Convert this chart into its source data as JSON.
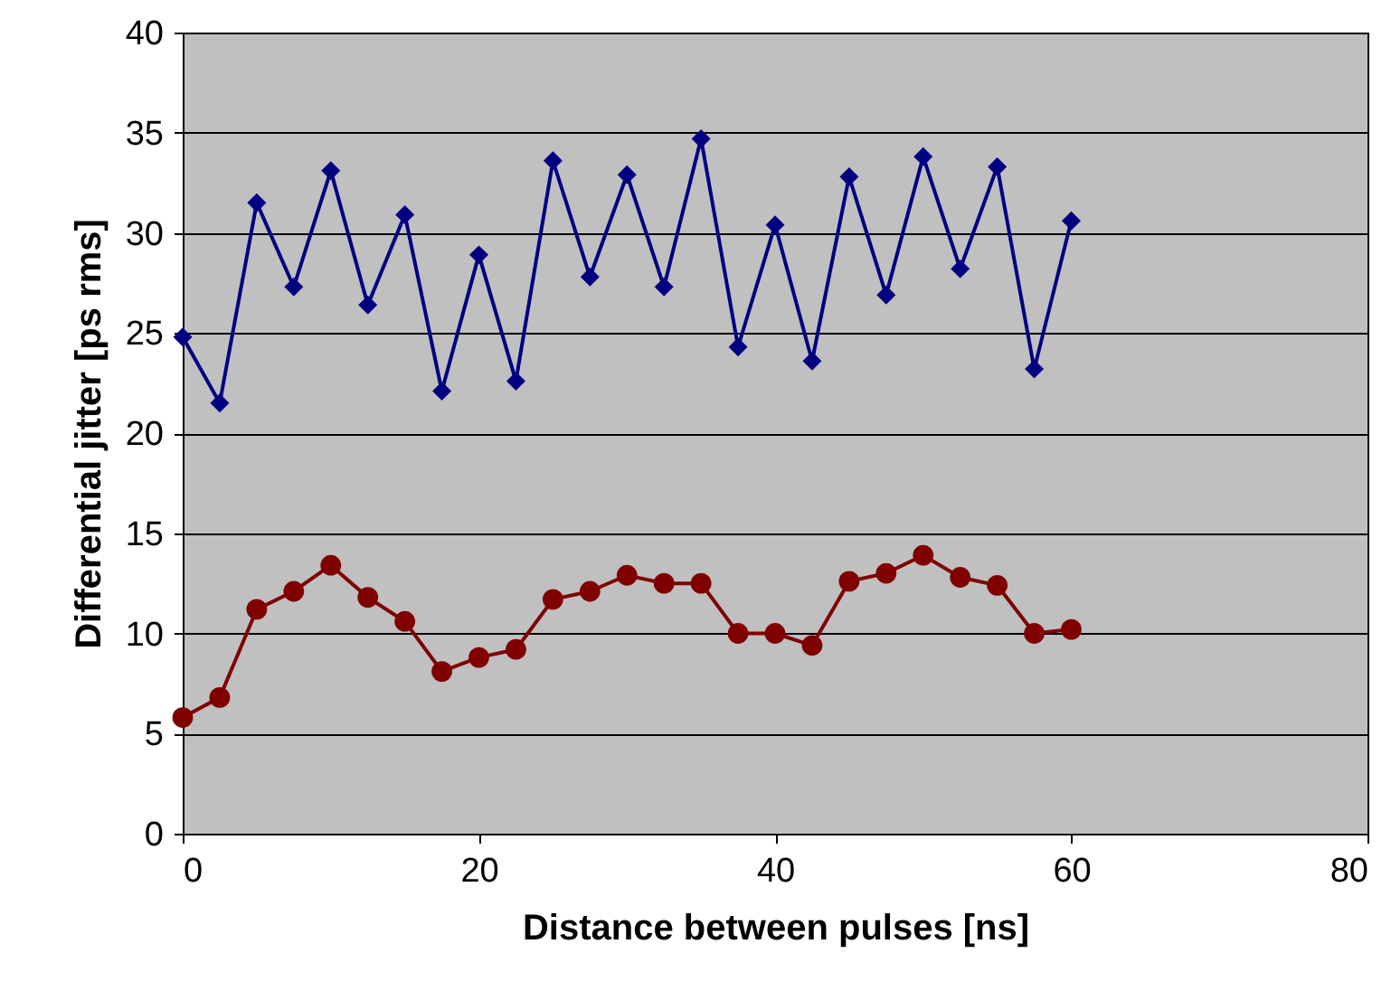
{
  "chart_data": {
    "type": "line",
    "xlabel": "Distance between pulses [ns]",
    "ylabel": "Differential jitter [ps rms]",
    "x": [
      0,
      2.5,
      5,
      7.5,
      10,
      12.5,
      15,
      17.5,
      20,
      22.5,
      25,
      27.5,
      30,
      32.5,
      35,
      37.5,
      40,
      42.5,
      45,
      47.5,
      50,
      52.5,
      55,
      57.5,
      60
    ],
    "series": [
      {
        "color": "#000080",
        "marker": "diamond",
        "values": [
          24.8,
          21.5,
          31.5,
          27.3,
          33.1,
          26.4,
          30.9,
          22.1,
          28.9,
          22.6,
          33.6,
          27.8,
          32.9,
          27.3,
          34.7,
          24.3,
          30.4,
          23.6,
          32.8,
          26.9,
          33.8,
          28.2,
          33.3,
          23.2,
          30.6
        ]
      },
      {
        "color": "#800000",
        "marker": "circle",
        "values": [
          5.8,
          6.8,
          11.2,
          12.1,
          13.4,
          11.8,
          10.6,
          8.1,
          8.8,
          9.2,
          11.7,
          12.1,
          12.9,
          12.5,
          12.5,
          10.0,
          10.0,
          9.4,
          12.6,
          13.0,
          13.9,
          12.8,
          12.4,
          10.0,
          10.2
        ]
      }
    ],
    "xlim": [
      0,
      80
    ],
    "xticks": [
      0,
      20,
      40,
      60,
      80
    ],
    "ylim": [
      0,
      40
    ],
    "yticks": [
      0,
      5,
      10,
      15,
      20,
      25,
      30,
      35,
      40
    ],
    "grid": "y"
  }
}
